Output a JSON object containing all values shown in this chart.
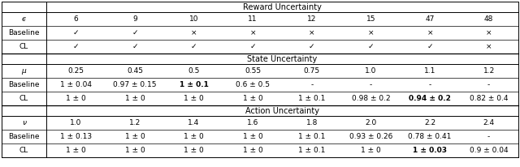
{
  "title_reward": "Reward Uncertainty",
  "title_state": "State Uncertainty",
  "title_action": "Action Uncertainty",
  "reward_header": [
    "ϵ",
    "6",
    "9",
    "10",
    "11",
    "12",
    "15",
    "47",
    "48"
  ],
  "reward_baseline": [
    "Baseline",
    "✓",
    "✓",
    "×",
    "×",
    "×",
    "×",
    "×",
    "×"
  ],
  "reward_cl": [
    "CL",
    "✓",
    "✓",
    "✓",
    "✓",
    "✓",
    "✓",
    "✓",
    "×"
  ],
  "state_header": [
    "μ",
    "0.25",
    "0.45",
    "0.5",
    "0.55",
    "0.75",
    "1.0",
    "1.1",
    "1.2"
  ],
  "state_baseline": [
    "Baseline",
    "1 ± 0.04",
    "0.97 ± 0.15",
    "1 ± 0.1",
    "0.6 ± 0.5",
    "-",
    "-",
    "-",
    "-"
  ],
  "state_baseline_bold": [
    false,
    false,
    false,
    true,
    false,
    false,
    false,
    false,
    false
  ],
  "state_cl": [
    "CL",
    "1 ± 0",
    "1 ± 0",
    "1 ± 0",
    "1 ± 0",
    "1 ± 0.1",
    "0.98 ± 0.2",
    "0.94 ± 0.2",
    "0.82 ± 0.4"
  ],
  "state_cl_bold": [
    false,
    false,
    false,
    false,
    false,
    false,
    false,
    true,
    false
  ],
  "action_header": [
    "ν",
    "1.0",
    "1.2",
    "1.4",
    "1.6",
    "1.8",
    "2.0",
    "2.2",
    "2.4"
  ],
  "action_baseline": [
    "Baseline",
    "1 ± 0.13",
    "1 ± 0",
    "1 ± 0",
    "1 ± 0",
    "1 ± 0.1",
    "0.93 ± 0.26",
    "0.78 ± 0.41",
    "-"
  ],
  "action_baseline_bold": [
    false,
    false,
    false,
    false,
    false,
    false,
    false,
    false,
    false
  ],
  "action_cl": [
    "CL",
    "1 ± 0",
    "1 ± 0",
    "1 ± 0",
    "1 ± 0",
    "1 ± 0.1",
    "1 ± 0",
    "1 ± 0.03",
    "0.9 ± 0.04"
  ],
  "action_cl_bold": [
    false,
    false,
    false,
    false,
    false,
    false,
    false,
    true,
    false
  ],
  "bg_color": "#ffffff",
  "text_color": "#000000",
  "line_color": "#000000"
}
